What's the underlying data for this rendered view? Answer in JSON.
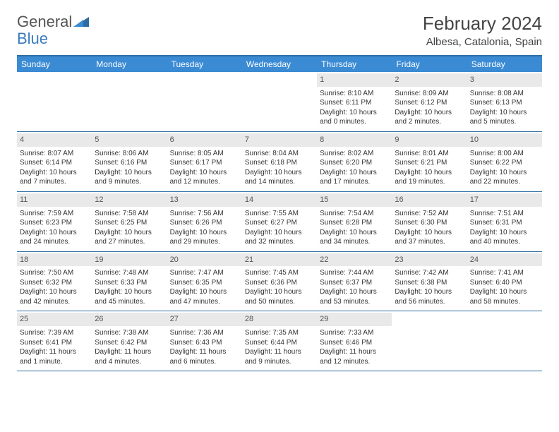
{
  "brand": {
    "part1": "General",
    "part2": "Blue"
  },
  "title": "February 2024",
  "location": "Albesa, Catalonia, Spain",
  "colors": {
    "header_bg": "#3b8bd4",
    "header_text": "#ffffff",
    "rule": "#2e6da4",
    "daynum_bg": "#e9e9e9",
    "text": "#333333",
    "logo_gray": "#555555",
    "logo_blue": "#3b7bbf"
  },
  "typography": {
    "title_fontsize": 26,
    "location_fontsize": 15,
    "header_fontsize": 12,
    "cell_fontsize": 10,
    "daynum_fontsize": 11
  },
  "day_names": [
    "Sunday",
    "Monday",
    "Tuesday",
    "Wednesday",
    "Thursday",
    "Friday",
    "Saturday"
  ],
  "grid": [
    [
      {
        "empty": true
      },
      {
        "empty": true
      },
      {
        "empty": true
      },
      {
        "empty": true
      },
      {
        "day": "1",
        "sunrise": "Sunrise: 8:10 AM",
        "sunset": "Sunset: 6:11 PM",
        "daylight1": "Daylight: 10 hours",
        "daylight2": "and 0 minutes."
      },
      {
        "day": "2",
        "sunrise": "Sunrise: 8:09 AM",
        "sunset": "Sunset: 6:12 PM",
        "daylight1": "Daylight: 10 hours",
        "daylight2": "and 2 minutes."
      },
      {
        "day": "3",
        "sunrise": "Sunrise: 8:08 AM",
        "sunset": "Sunset: 6:13 PM",
        "daylight1": "Daylight: 10 hours",
        "daylight2": "and 5 minutes."
      }
    ],
    [
      {
        "day": "4",
        "sunrise": "Sunrise: 8:07 AM",
        "sunset": "Sunset: 6:14 PM",
        "daylight1": "Daylight: 10 hours",
        "daylight2": "and 7 minutes."
      },
      {
        "day": "5",
        "sunrise": "Sunrise: 8:06 AM",
        "sunset": "Sunset: 6:16 PM",
        "daylight1": "Daylight: 10 hours",
        "daylight2": "and 9 minutes."
      },
      {
        "day": "6",
        "sunrise": "Sunrise: 8:05 AM",
        "sunset": "Sunset: 6:17 PM",
        "daylight1": "Daylight: 10 hours",
        "daylight2": "and 12 minutes."
      },
      {
        "day": "7",
        "sunrise": "Sunrise: 8:04 AM",
        "sunset": "Sunset: 6:18 PM",
        "daylight1": "Daylight: 10 hours",
        "daylight2": "and 14 minutes."
      },
      {
        "day": "8",
        "sunrise": "Sunrise: 8:02 AM",
        "sunset": "Sunset: 6:20 PM",
        "daylight1": "Daylight: 10 hours",
        "daylight2": "and 17 minutes."
      },
      {
        "day": "9",
        "sunrise": "Sunrise: 8:01 AM",
        "sunset": "Sunset: 6:21 PM",
        "daylight1": "Daylight: 10 hours",
        "daylight2": "and 19 minutes."
      },
      {
        "day": "10",
        "sunrise": "Sunrise: 8:00 AM",
        "sunset": "Sunset: 6:22 PM",
        "daylight1": "Daylight: 10 hours",
        "daylight2": "and 22 minutes."
      }
    ],
    [
      {
        "day": "11",
        "sunrise": "Sunrise: 7:59 AM",
        "sunset": "Sunset: 6:23 PM",
        "daylight1": "Daylight: 10 hours",
        "daylight2": "and 24 minutes."
      },
      {
        "day": "12",
        "sunrise": "Sunrise: 7:58 AM",
        "sunset": "Sunset: 6:25 PM",
        "daylight1": "Daylight: 10 hours",
        "daylight2": "and 27 minutes."
      },
      {
        "day": "13",
        "sunrise": "Sunrise: 7:56 AM",
        "sunset": "Sunset: 6:26 PM",
        "daylight1": "Daylight: 10 hours",
        "daylight2": "and 29 minutes."
      },
      {
        "day": "14",
        "sunrise": "Sunrise: 7:55 AM",
        "sunset": "Sunset: 6:27 PM",
        "daylight1": "Daylight: 10 hours",
        "daylight2": "and 32 minutes."
      },
      {
        "day": "15",
        "sunrise": "Sunrise: 7:54 AM",
        "sunset": "Sunset: 6:28 PM",
        "daylight1": "Daylight: 10 hours",
        "daylight2": "and 34 minutes."
      },
      {
        "day": "16",
        "sunrise": "Sunrise: 7:52 AM",
        "sunset": "Sunset: 6:30 PM",
        "daylight1": "Daylight: 10 hours",
        "daylight2": "and 37 minutes."
      },
      {
        "day": "17",
        "sunrise": "Sunrise: 7:51 AM",
        "sunset": "Sunset: 6:31 PM",
        "daylight1": "Daylight: 10 hours",
        "daylight2": "and 40 minutes."
      }
    ],
    [
      {
        "day": "18",
        "sunrise": "Sunrise: 7:50 AM",
        "sunset": "Sunset: 6:32 PM",
        "daylight1": "Daylight: 10 hours",
        "daylight2": "and 42 minutes."
      },
      {
        "day": "19",
        "sunrise": "Sunrise: 7:48 AM",
        "sunset": "Sunset: 6:33 PM",
        "daylight1": "Daylight: 10 hours",
        "daylight2": "and 45 minutes."
      },
      {
        "day": "20",
        "sunrise": "Sunrise: 7:47 AM",
        "sunset": "Sunset: 6:35 PM",
        "daylight1": "Daylight: 10 hours",
        "daylight2": "and 47 minutes."
      },
      {
        "day": "21",
        "sunrise": "Sunrise: 7:45 AM",
        "sunset": "Sunset: 6:36 PM",
        "daylight1": "Daylight: 10 hours",
        "daylight2": "and 50 minutes."
      },
      {
        "day": "22",
        "sunrise": "Sunrise: 7:44 AM",
        "sunset": "Sunset: 6:37 PM",
        "daylight1": "Daylight: 10 hours",
        "daylight2": "and 53 minutes."
      },
      {
        "day": "23",
        "sunrise": "Sunrise: 7:42 AM",
        "sunset": "Sunset: 6:38 PM",
        "daylight1": "Daylight: 10 hours",
        "daylight2": "and 56 minutes."
      },
      {
        "day": "24",
        "sunrise": "Sunrise: 7:41 AM",
        "sunset": "Sunset: 6:40 PM",
        "daylight1": "Daylight: 10 hours",
        "daylight2": "and 58 minutes."
      }
    ],
    [
      {
        "day": "25",
        "sunrise": "Sunrise: 7:39 AM",
        "sunset": "Sunset: 6:41 PM",
        "daylight1": "Daylight: 11 hours",
        "daylight2": "and 1 minute."
      },
      {
        "day": "26",
        "sunrise": "Sunrise: 7:38 AM",
        "sunset": "Sunset: 6:42 PM",
        "daylight1": "Daylight: 11 hours",
        "daylight2": "and 4 minutes."
      },
      {
        "day": "27",
        "sunrise": "Sunrise: 7:36 AM",
        "sunset": "Sunset: 6:43 PM",
        "daylight1": "Daylight: 11 hours",
        "daylight2": "and 6 minutes."
      },
      {
        "day": "28",
        "sunrise": "Sunrise: 7:35 AM",
        "sunset": "Sunset: 6:44 PM",
        "daylight1": "Daylight: 11 hours",
        "daylight2": "and 9 minutes."
      },
      {
        "day": "29",
        "sunrise": "Sunrise: 7:33 AM",
        "sunset": "Sunset: 6:46 PM",
        "daylight1": "Daylight: 11 hours",
        "daylight2": "and 12 minutes."
      },
      {
        "empty": true
      },
      {
        "empty": true
      }
    ]
  ]
}
